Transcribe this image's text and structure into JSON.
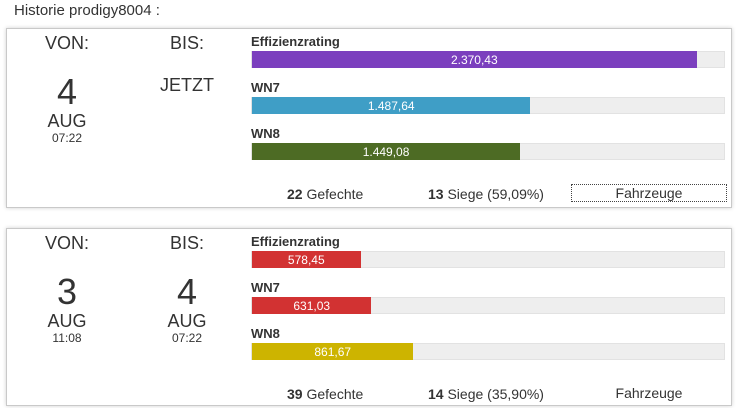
{
  "page_title": "Historie prodigy8004 :",
  "colors": {
    "effizienz_purple": "#7b3fbe",
    "wn7_blue": "#3f9ec6",
    "wn8_green": "#4d6b24",
    "red": "#d23232",
    "yellow": "#cdb400"
  },
  "cards": [
    {
      "von_label": "VON:",
      "von_day": "4",
      "von_month": "AUG",
      "von_time": "07:22",
      "bis_label": "BIS:",
      "bis_now": "JETZT",
      "metrics": [
        {
          "label": "Effizienzrating",
          "value_text": "2.370,43",
          "fraction": 0.942,
          "color": "#7b3fbe"
        },
        {
          "label": "WN7",
          "value_text": "1.487,64",
          "fraction": 0.59,
          "color": "#3f9ec6"
        },
        {
          "label": "WN8",
          "value_text": "1.449,08",
          "fraction": 0.568,
          "color": "#4d6b24"
        }
      ],
      "battles_count": "22",
      "battles_label": "Gefechte",
      "wins_count": "13",
      "wins_label": "Siege (59,09%)",
      "vehicles_button": "Fahrzeuge"
    },
    {
      "von_label": "VON:",
      "von_day": "3",
      "von_month": "AUG",
      "von_time": "11:08",
      "bis_label": "BIS:",
      "bis_day": "4",
      "bis_month": "AUG",
      "bis_time": "07:22",
      "metrics": [
        {
          "label": "Effizienzrating",
          "value_text": "578,45",
          "fraction": 0.23,
          "color": "#d23232"
        },
        {
          "label": "WN7",
          "value_text": "631,03",
          "fraction": 0.253,
          "color": "#d23232"
        },
        {
          "label": "WN8",
          "value_text": "861,67",
          "fraction": 0.342,
          "color": "#cdb400"
        }
      ],
      "battles_count": "39",
      "battles_label": "Gefechte",
      "wins_count": "14",
      "wins_label": "Siege (35,90%)",
      "vehicles_button": "Fahrzeuge"
    }
  ]
}
